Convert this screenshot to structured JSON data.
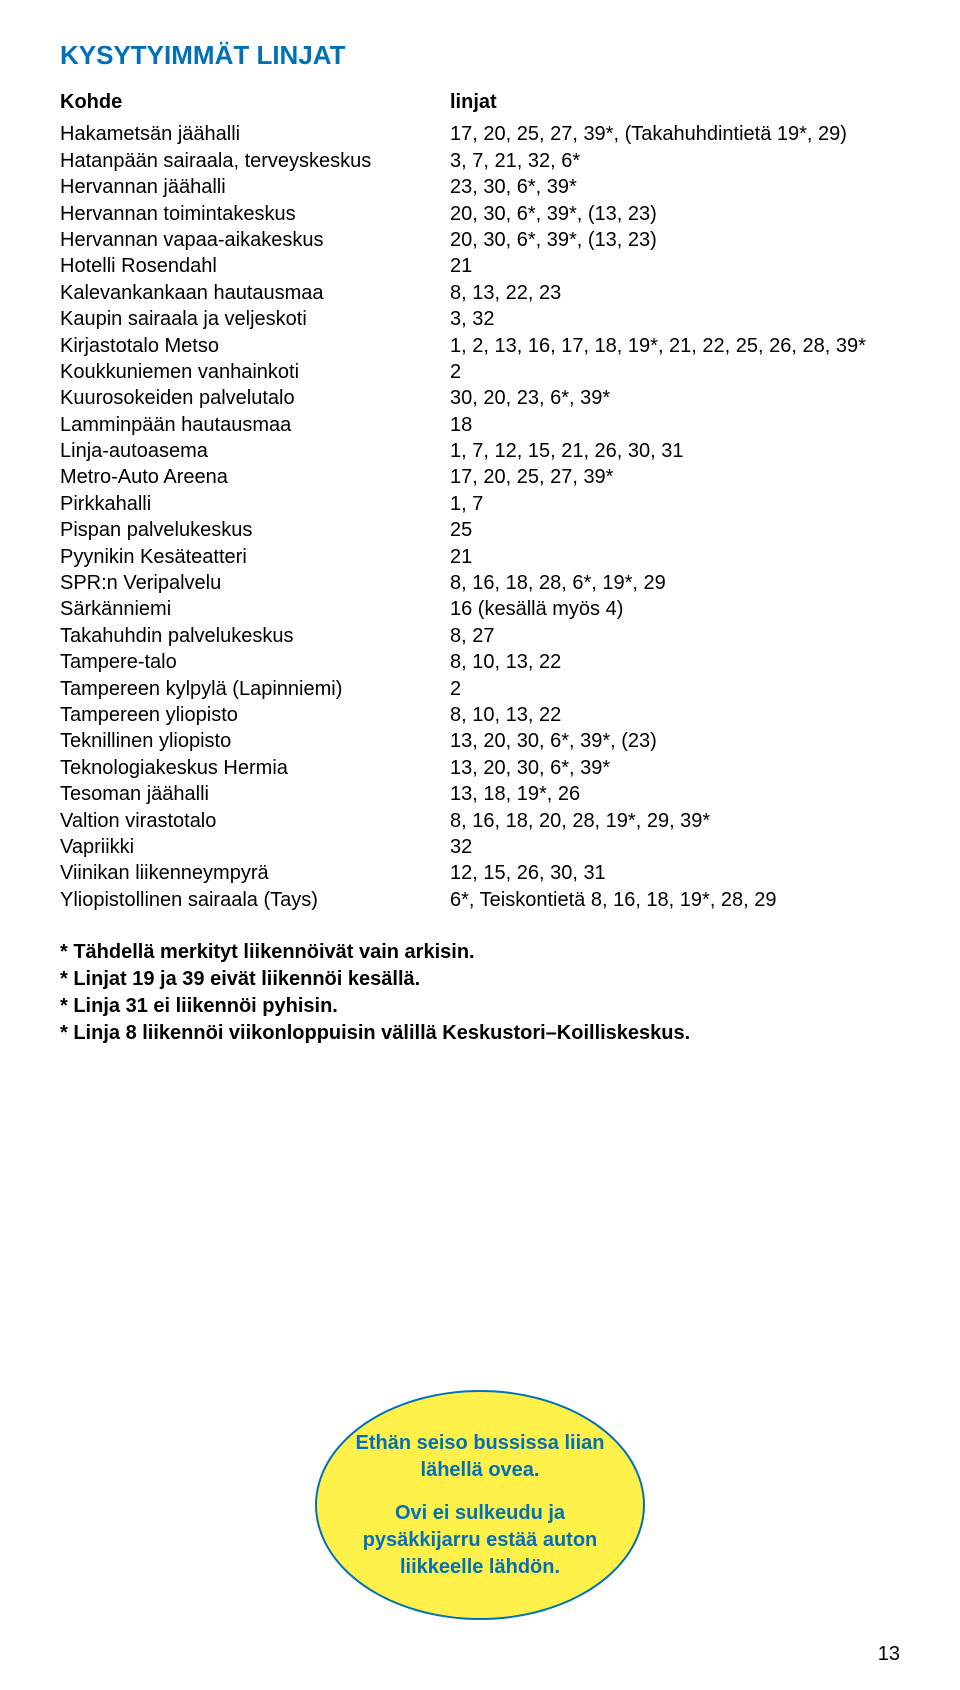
{
  "title": "KYSYTYIMMÄT LINJAT",
  "header": {
    "kohde": "Kohde",
    "linjat": "linjat"
  },
  "rows": [
    {
      "kohde": "Hakametsän jäähalli",
      "linjat": "17, 20, 25, 27, 39*, (Takahuhdintietä 19*, 29)"
    },
    {
      "kohde": "Hatanpään sairaala, terveyskeskus",
      "linjat": "3, 7, 21, 32, 6*"
    },
    {
      "kohde": "Hervannan jäähalli",
      "linjat": "23, 30, 6*, 39*"
    },
    {
      "kohde": "Hervannan toimintakeskus",
      "linjat": "20, 30, 6*, 39*, (13, 23)"
    },
    {
      "kohde": "Hervannan vapaa-aikakeskus",
      "linjat": "20, 30, 6*, 39*, (13, 23)"
    },
    {
      "kohde": "Hotelli Rosendahl",
      "linjat": "21"
    },
    {
      "kohde": "Kalevankankaan hautausmaa",
      "linjat": "8, 13, 22, 23"
    },
    {
      "kohde": "Kaupin sairaala ja veljeskoti",
      "linjat": "3, 32"
    },
    {
      "kohde": "Kirjastotalo Metso",
      "linjat": "1, 2, 13, 16, 17, 18, 19*, 21, 22, 25, 26, 28, 39*"
    },
    {
      "kohde": "Koukkuniemen vanhainkoti",
      "linjat": "2"
    },
    {
      "kohde": "Kuurosokeiden palvelutalo",
      "linjat": "30, 20, 23, 6*, 39*"
    },
    {
      "kohde": "Lamminpään hautausmaa",
      "linjat": "18"
    },
    {
      "kohde": "Linja-autoasema",
      "linjat": "1, 7, 12, 15, 21, 26, 30, 31"
    },
    {
      "kohde": "Metro-Auto Areena",
      "linjat": "17, 20, 25, 27, 39*"
    },
    {
      "kohde": "Pirkkahalli",
      "linjat": "1, 7"
    },
    {
      "kohde": "Pispan palvelukeskus",
      "linjat": "25"
    },
    {
      "kohde": "Pyynikin Kesäteatteri",
      "linjat": "21"
    },
    {
      "kohde": "SPR:n Veripalvelu",
      "linjat": "8, 16, 18, 28, 6*, 19*, 29"
    },
    {
      "kohde": "Särkänniemi",
      "linjat": "16 (kesällä myös 4)"
    },
    {
      "kohde": "Takahuhdin palvelukeskus",
      "linjat": "8, 27"
    },
    {
      "kohde": "Tampere-talo",
      "linjat": "8, 10, 13, 22"
    },
    {
      "kohde": "Tampereen kylpylä (Lapinniemi)",
      "linjat": "2"
    },
    {
      "kohde": "Tampereen yliopisto",
      "linjat": "8, 10, 13, 22"
    },
    {
      "kohde": "Teknillinen yliopisto",
      "linjat": "13, 20, 30, 6*, 39*, (23)"
    },
    {
      "kohde": "Teknologiakeskus Hermia",
      "linjat": "13, 20, 30, 6*, 39*"
    },
    {
      "kohde": "Tesoman jäähalli",
      "linjat": "13, 18, 19*, 26"
    },
    {
      "kohde": "Valtion virastotalo",
      "linjat": "8, 16, 18, 20, 28, 19*, 29, 39*"
    },
    {
      "kohde": "Vapriikki",
      "linjat": "32"
    },
    {
      "kohde": "Viinikan liikenneympyrä",
      "linjat": "12, 15, 26, 30, 31"
    },
    {
      "kohde": "Yliopistollinen sairaala (Tays)",
      "linjat": "6*, Teiskontietä 8, 16, 18, 19*, 28, 29"
    }
  ],
  "notes": [
    "* Tähdellä merkityt liikennöivät vain arkisin.",
    "* Linjat 19 ja 39 eivät liikennöi kesällä.",
    "* Linja 31 ei liikennöi pyhisin.",
    "* Linja 8 liikennöi viikonloppuisin välillä Keskustori–Koilliskeskus."
  ],
  "bubble": {
    "bg": "#fff04a",
    "border": "#0070b8",
    "text_color": "#0070b8",
    "line1": "Ethän seiso bussissa liian lähellä ovea.",
    "line2": "Ovi ei sulkeudu ja pysäkkijarru estää auton liikkeelle lähdön."
  },
  "page_number": "13",
  "colors": {
    "title": "#0070b8",
    "text": "#000000",
    "bg": "#ffffff"
  }
}
